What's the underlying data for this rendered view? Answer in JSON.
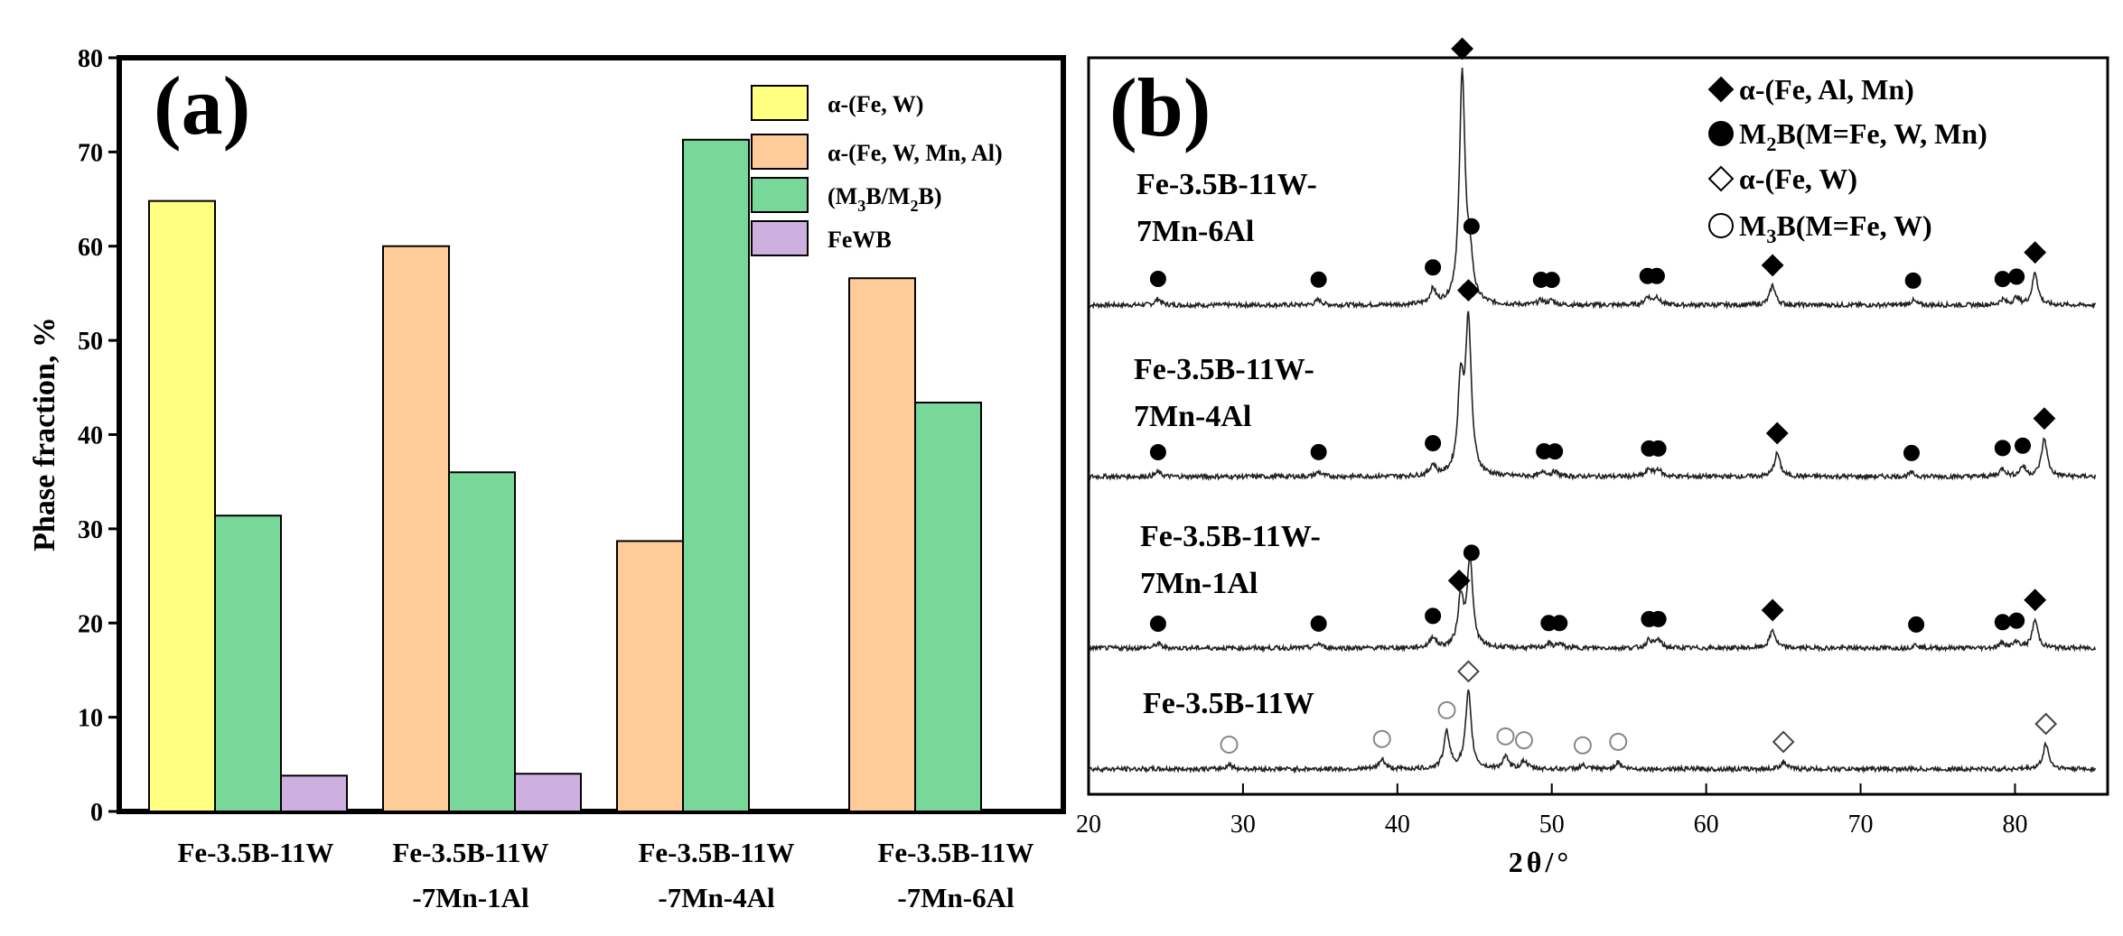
{
  "chart_data": [
    {
      "panel": "(a)",
      "type": "bar",
      "ylabel": "Phase fraction, %",
      "ylim": [
        0,
        80
      ],
      "yticks": [
        "0",
        "10",
        "20",
        "30",
        "40",
        "50",
        "60",
        "70",
        "80"
      ],
      "categories": [
        [
          "Fe-3.5B-11W"
        ],
        [
          "Fe-3.5B-11W",
          "-7Mn-1Al"
        ],
        [
          "Fe-3.5B-11W",
          "-7Mn-4Al"
        ],
        [
          "Fe-3.5B-11W",
          "-7Mn-6Al"
        ]
      ],
      "legend_position": "top-right",
      "series": [
        {
          "name": "α-(Fe, W)",
          "color": "#ffff80",
          "values": [
            64.8,
            null,
            null,
            null
          ]
        },
        {
          "name": "α-(Fe, W, Mn, Al)",
          "color": "#ffcc99",
          "values": [
            null,
            60.0,
            28.7,
            56.6
          ]
        },
        {
          "name": "(M3B/M2B)",
          "color": "#78d89a",
          "values": [
            31.4,
            36.0,
            71.3,
            43.4
          ]
        },
        {
          "name": "FeWB",
          "color": "#cdb0e0",
          "values": [
            3.8,
            4.0,
            null,
            null
          ]
        }
      ]
    },
    {
      "panel": "(b)",
      "type": "line",
      "xlabel": "2θ/°",
      "xlim": [
        20,
        86
      ],
      "xticks": [
        "20",
        "30",
        "40",
        "50",
        "60",
        "70",
        "80"
      ],
      "legend_position": "top-right",
      "legend": [
        {
          "marker": "filled-diamond",
          "label": "α-(Fe, Al, Mn)"
        },
        {
          "marker": "filled-circle",
          "label": "M2B(M=Fe, W, Mn)"
        },
        {
          "marker": "open-diamond",
          "label": "α-(Fe, W)"
        },
        {
          "marker": "open-circle",
          "label": "M3B(M=Fe, W)"
        }
      ],
      "series": [
        {
          "name": "Fe-3.5B-11W-7Mn-6Al",
          "label_lines": [
            "Fe-3.5B-11W-",
            "7Mn-6Al"
          ],
          "peaks": [
            [
              24.5,
              0.7
            ],
            [
              34.9,
              0.6
            ],
            [
              42.3,
              1.6
            ],
            [
              44.2,
              25.5
            ],
            [
              44.7,
              4.2
            ],
            [
              49.3,
              0.5
            ],
            [
              50.0,
              0.5
            ],
            [
              56.2,
              0.9
            ],
            [
              56.8,
              0.9
            ],
            [
              64.3,
              2.2
            ],
            [
              73.4,
              0.5
            ],
            [
              79.2,
              0.6
            ],
            [
              80.1,
              0.8
            ],
            [
              81.3,
              3.6
            ]
          ],
          "markers": [
            {
              "x": 24.5,
              "type": "filled-circle"
            },
            {
              "x": 34.9,
              "type": "filled-circle"
            },
            {
              "x": 42.3,
              "type": "filled-circle"
            },
            {
              "x": 44.2,
              "type": "filled-diamond"
            },
            {
              "x": 44.8,
              "type": "filled-circle"
            },
            {
              "x": 49.3,
              "type": "filled-circle"
            },
            {
              "x": 50.0,
              "type": "filled-circle"
            },
            {
              "x": 56.2,
              "type": "filled-circle"
            },
            {
              "x": 56.8,
              "type": "filled-circle"
            },
            {
              "x": 64.3,
              "type": "filled-diamond"
            },
            {
              "x": 73.4,
              "type": "filled-circle"
            },
            {
              "x": 79.2,
              "type": "filled-circle"
            },
            {
              "x": 80.1,
              "type": "filled-circle"
            },
            {
              "x": 81.3,
              "type": "filled-diamond"
            }
          ]
        },
        {
          "name": "Fe-3.5B-11W-7Mn-4Al",
          "label_lines": [
            "Fe-3.5B-11W-",
            "7Mn-4Al"
          ],
          "peaks": [
            [
              24.5,
              0.5
            ],
            [
              34.9,
              0.5
            ],
            [
              42.3,
              1.2
            ],
            [
              44.1,
              10.0
            ],
            [
              44.6,
              16.8
            ],
            [
              49.5,
              0.5
            ],
            [
              50.2,
              0.5
            ],
            [
              56.3,
              0.8
            ],
            [
              56.9,
              0.8
            ],
            [
              64.6,
              2.6
            ],
            [
              73.3,
              0.4
            ],
            [
              79.2,
              0.9
            ],
            [
              80.5,
              1.1
            ],
            [
              81.9,
              4.2
            ]
          ],
          "markers": [
            {
              "x": 24.5,
              "type": "filled-circle"
            },
            {
              "x": 34.9,
              "type": "filled-circle"
            },
            {
              "x": 42.3,
              "type": "filled-circle"
            },
            {
              "x": 44.6,
              "type": "filled-circle"
            },
            {
              "x": 44.6,
              "type": "filled-diamond"
            },
            {
              "x": 49.5,
              "type": "filled-circle"
            },
            {
              "x": 50.2,
              "type": "filled-circle"
            },
            {
              "x": 56.3,
              "type": "filled-circle"
            },
            {
              "x": 56.9,
              "type": "filled-circle"
            },
            {
              "x": 64.6,
              "type": "filled-diamond"
            },
            {
              "x": 73.3,
              "type": "filled-circle"
            },
            {
              "x": 79.2,
              "type": "filled-circle"
            },
            {
              "x": 80.5,
              "type": "filled-circle"
            },
            {
              "x": 81.9,
              "type": "filled-diamond"
            }
          ]
        },
        {
          "name": "Fe-3.5B-11W-7Mn-1Al",
          "label_lines": [
            "Fe-3.5B-11W-",
            "7Mn-1Al"
          ],
          "peaks": [
            [
              24.5,
              0.5
            ],
            [
              34.9,
              0.5
            ],
            [
              42.3,
              1.2
            ],
            [
              44.1,
              5.3
            ],
            [
              44.7,
              9.5
            ],
            [
              49.8,
              0.5
            ],
            [
              50.5,
              0.5
            ],
            [
              56.3,
              0.9
            ],
            [
              56.9,
              0.9
            ],
            [
              64.3,
              2.0
            ],
            [
              73.6,
              0.4
            ],
            [
              79.2,
              0.6
            ],
            [
              80.1,
              0.7
            ],
            [
              81.3,
              3.1
            ]
          ],
          "markers": [
            {
              "x": 24.5,
              "type": "filled-circle"
            },
            {
              "x": 34.9,
              "type": "filled-circle"
            },
            {
              "x": 42.3,
              "type": "filled-circle"
            },
            {
              "x": 44.0,
              "type": "filled-diamond"
            },
            {
              "x": 44.8,
              "type": "filled-circle"
            },
            {
              "x": 49.8,
              "type": "filled-circle"
            },
            {
              "x": 50.5,
              "type": "filled-circle"
            },
            {
              "x": 56.3,
              "type": "filled-circle"
            },
            {
              "x": 56.9,
              "type": "filled-circle"
            },
            {
              "x": 64.3,
              "type": "filled-diamond"
            },
            {
              "x": 73.6,
              "type": "filled-circle"
            },
            {
              "x": 79.2,
              "type": "filled-circle"
            },
            {
              "x": 80.1,
              "type": "filled-circle"
            },
            {
              "x": 81.3,
              "type": "filled-diamond"
            }
          ]
        },
        {
          "name": "Fe-3.5B-11W",
          "label_lines": [
            "Fe-3.5B-11W"
          ],
          "peaks": [
            [
              29.1,
              0.5
            ],
            [
              39.0,
              1.1
            ],
            [
              43.2,
              4.1
            ],
            [
              44.6,
              8.5
            ],
            [
              47.0,
              1.3
            ],
            [
              48.2,
              0.9
            ],
            [
              52.0,
              0.4
            ],
            [
              54.3,
              0.8
            ],
            [
              65.0,
              0.8
            ],
            [
              82.0,
              2.8
            ]
          ],
          "markers": [
            {
              "x": 29.1,
              "type": "open-circle"
            },
            {
              "x": 39.0,
              "type": "open-circle"
            },
            {
              "x": 43.2,
              "type": "open-circle"
            },
            {
              "x": 44.6,
              "type": "open-diamond"
            },
            {
              "x": 47.0,
              "type": "open-circle"
            },
            {
              "x": 48.2,
              "type": "open-circle"
            },
            {
              "x": 52.0,
              "type": "open-circle"
            },
            {
              "x": 54.3,
              "type": "open-circle"
            },
            {
              "x": 65.0,
              "type": "open-diamond"
            },
            {
              "x": 82.0,
              "type": "open-diamond"
            }
          ]
        }
      ]
    }
  ]
}
